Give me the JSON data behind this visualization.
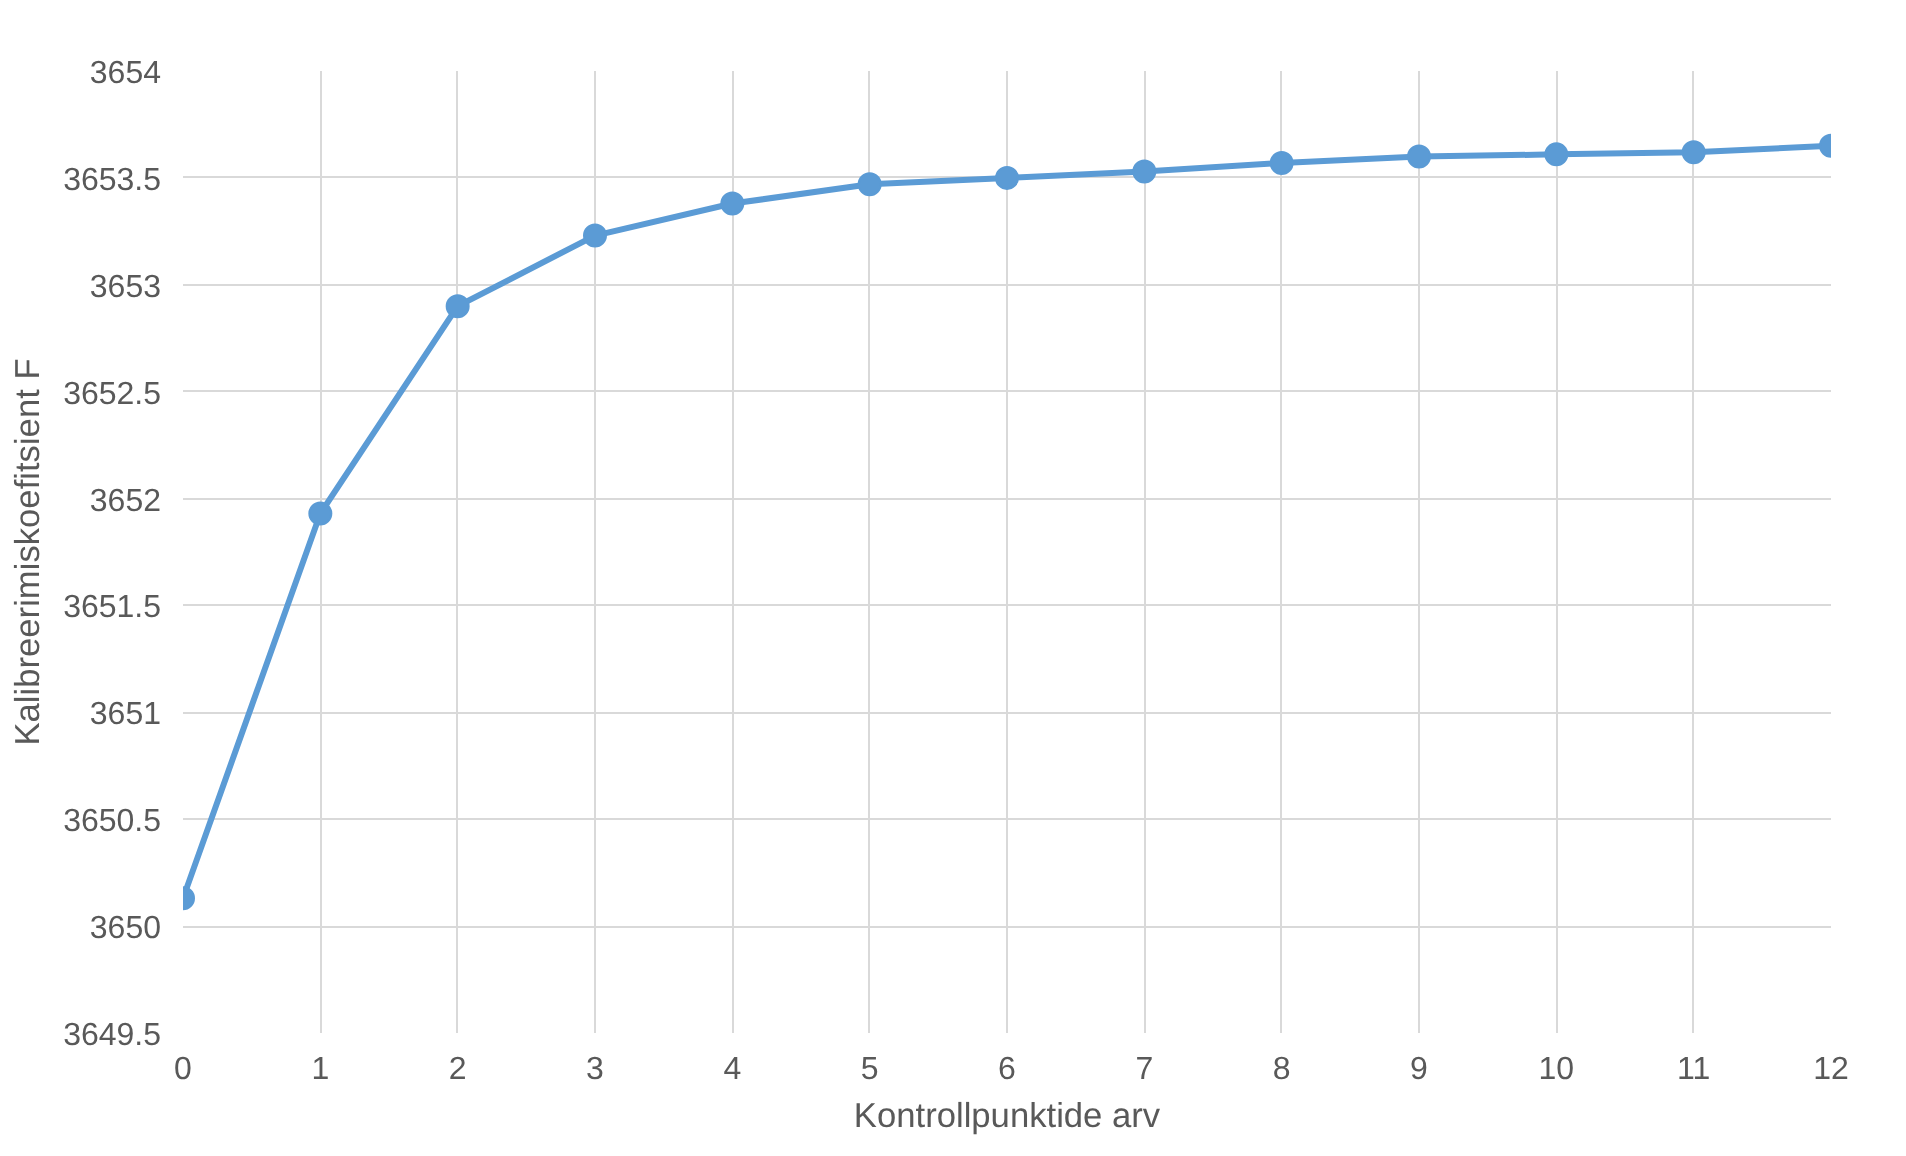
{
  "chart_data": {
    "type": "line",
    "xlabel": "Kontrollpunktide arv",
    "ylabel": "Kalibreerimiskoefitsient F",
    "x": [
      0,
      1,
      2,
      3,
      4,
      5,
      6,
      7,
      8,
      9,
      10,
      11,
      12
    ],
    "series": [
      {
        "color": "#5b9bd5",
        "values": [
          3650.13,
          3651.93,
          3652.9,
          3653.23,
          3653.38,
          3653.47,
          3653.5,
          3653.53,
          3653.57,
          3653.6,
          3653.61,
          3653.62,
          3653.65
        ]
      }
    ],
    "xlim": [
      0,
      12
    ],
    "xticks": [
      0,
      1,
      2,
      3,
      4,
      5,
      6,
      7,
      8,
      9,
      10,
      11,
      12
    ],
    "ylim": [
      3649.5,
      3654
    ],
    "yticks": [
      {
        "value": 3649.5,
        "label": "3649.5"
      },
      {
        "value": 3650,
        "label": "3650"
      },
      {
        "value": 3650.5,
        "label": "3650.5"
      },
      {
        "value": 3651,
        "label": "3651"
      },
      {
        "value": 3651.5,
        "label": "3651.5"
      },
      {
        "value": 3652,
        "label": "3652"
      },
      {
        "value": 3652.5,
        "label": "3652.5"
      },
      {
        "value": 3653,
        "label": "3653"
      },
      {
        "value": 3653.5,
        "label": "3653.5"
      },
      {
        "value": 3654,
        "label": "3654"
      }
    ],
    "grid": true,
    "marker": "circle",
    "line_style": "solid"
  }
}
